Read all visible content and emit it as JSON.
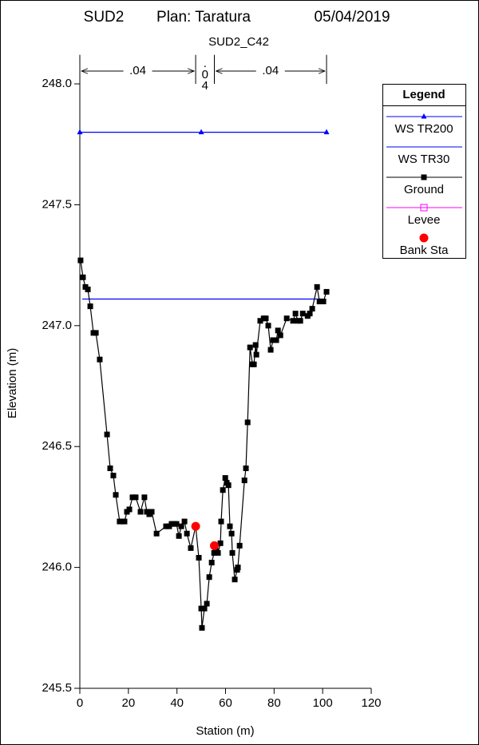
{
  "chart_data": {
    "type": "cross-section",
    "title": [
      "SUD2",
      "Plan: Taratura",
      "05/04/2019"
    ],
    "subtitle": "SUD2_C42",
    "x_label": "Station (m)",
    "y_label": "Elevation (m)",
    "xlim": [
      0,
      120
    ],
    "ylim": [
      245.5,
      248.12
    ],
    "xticks": [
      0,
      20,
      40,
      60,
      80,
      100,
      120
    ],
    "yticks": [
      {
        "value": 245.5,
        "label": "245.5"
      },
      {
        "value": 246.0,
        "label": "246.0"
      },
      {
        "value": 246.5,
        "label": "246.5"
      },
      {
        "value": 247.0,
        "label": "247.0"
      },
      {
        "value": 247.5,
        "label": "247.5"
      },
      {
        "value": 248.0,
        "label": "248.0"
      }
    ],
    "n_values": [
      ".04",
      ".04",
      ".04"
    ],
    "n_breaks": [
      0,
      47.7,
      55.4,
      101.6
    ],
    "legend_title": "Legend",
    "series": [
      {
        "name": "WS TR200",
        "color": "#0000ff",
        "marker": "triangle",
        "line": true,
        "x": [
          0,
          50,
          101.6
        ],
        "values": [
          247.8,
          247.8,
          247.8
        ]
      },
      {
        "name": "WS TR30",
        "color": "#0000ff",
        "marker": "none",
        "line": true,
        "x": [
          1,
          100
        ],
        "values": [
          247.11,
          247.11
        ]
      },
      {
        "name": "Ground",
        "color": "#000000",
        "marker": "square",
        "line": true,
        "x": [
          0.3,
          1.3,
          2.3,
          3.3,
          4.3,
          5.6,
          6.6,
          8.2,
          11.2,
          12.5,
          13.8,
          14.8,
          16.4,
          17.4,
          18.4,
          19.4,
          20.4,
          21.7,
          23,
          25,
          26.6,
          27.6,
          28.6,
          29.6,
          31.6,
          35.5,
          36.8,
          37.8,
          38.8,
          39.8,
          40.8,
          41.8,
          43.1,
          44.1,
          45.7,
          47.7,
          49,
          50,
          50.3,
          51.3,
          52.3,
          53.3,
          54.3,
          55.3,
          55.9,
          56.9,
          57.9,
          58.2,
          58.9,
          59.9,
          60.5,
          61.2,
          61.8,
          62.5,
          62.8,
          63.8,
          64.8,
          65.1,
          65.8,
          67.8,
          68.4,
          69.1,
          70.1,
          71.1,
          71.7,
          72.4,
          72.7,
          74.3,
          75.7,
          76.6,
          77.6,
          78.6,
          79.6,
          80.9,
          81.6,
          82.6,
          85.2,
          87.8,
          88.8,
          89.8,
          90.8,
          91.8,
          93.8,
          94.7,
          95.7,
          97.7,
          98.7,
          100.3,
          101.6
        ],
        "values": [
          247.27,
          247.2,
          247.16,
          247.15,
          247.08,
          246.97,
          246.97,
          246.86,
          246.55,
          246.41,
          246.38,
          246.3,
          246.19,
          246.19,
          246.19,
          246.23,
          246.24,
          246.29,
          246.29,
          246.23,
          246.29,
          246.23,
          246.22,
          246.23,
          246.14,
          246.17,
          246.17,
          246.18,
          246.18,
          246.18,
          246.13,
          246.17,
          246.19,
          246.14,
          246.08,
          246.17,
          246.04,
          245.83,
          245.75,
          245.83,
          245.85,
          245.96,
          246.02,
          246.06,
          246.07,
          246.06,
          246.1,
          246.19,
          246.32,
          246.37,
          246.35,
          246.34,
          246.17,
          246.14,
          246.06,
          245.95,
          245.99,
          246.0,
          246.09,
          246.36,
          246.41,
          246.6,
          246.91,
          246.84,
          246.84,
          246.92,
          246.88,
          247.02,
          247.03,
          247.03,
          247.0,
          246.9,
          246.94,
          246.94,
          246.98,
          246.96,
          247.03,
          247.02,
          247.05,
          247.02,
          247.02,
          247.05,
          247.04,
          247.05,
          247.07,
          247.16,
          247.1,
          247.1,
          247.14
        ]
      },
      {
        "name": "Levee",
        "color": "#ff00ff",
        "marker": "open-square",
        "line": true,
        "x": [],
        "values": []
      },
      {
        "name": "Bank Sta",
        "color": "#ff0000",
        "marker": "circle",
        "line": false,
        "x": [
          47.7,
          55.4
        ],
        "values": [
          246.17,
          246.09
        ]
      }
    ]
  }
}
